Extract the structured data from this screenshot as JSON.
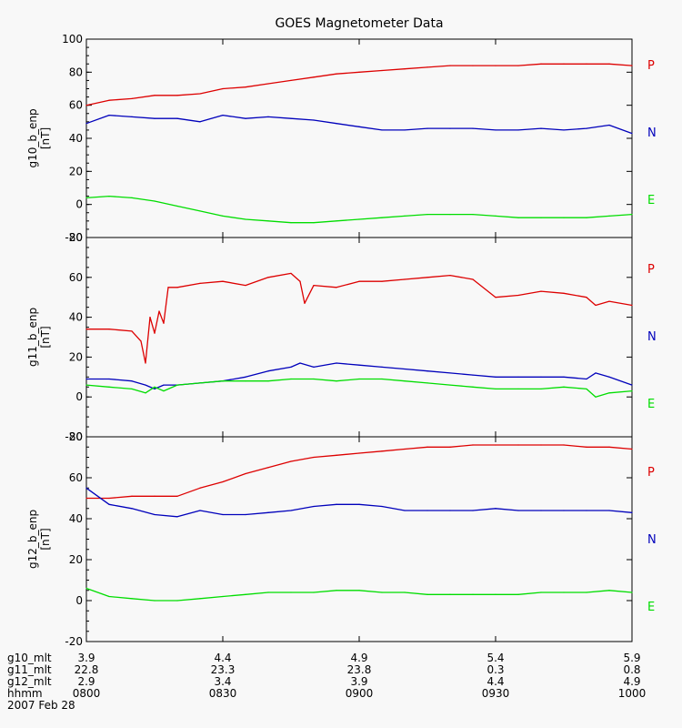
{
  "chart_data": {
    "type": "line",
    "title": "GOES Magnetometer Data",
    "colors": {
      "P": "#dd0000",
      "N": "#0000bb",
      "E": "#00dd00"
    },
    "x": {
      "xlim": [
        0,
        120
      ],
      "tick_positions": [
        0,
        30,
        60,
        90,
        120
      ],
      "rows": [
        {
          "name": "g10_mlt",
          "values": [
            "3.9",
            "4.4",
            "4.9",
            "5.4",
            "5.9"
          ]
        },
        {
          "name": "g11_mlt",
          "values": [
            "22.8",
            "23.3",
            "23.8",
            "0.3",
            "0.8"
          ]
        },
        {
          "name": "g12_mlt",
          "values": [
            "2.9",
            "3.4",
            "3.9",
            "4.4",
            "4.9"
          ]
        },
        {
          "name": "hhmm",
          "values": [
            "0800",
            "0830",
            "0900",
            "0930",
            "1000"
          ]
        }
      ],
      "date": "2007 Feb 28"
    },
    "panels": [
      {
        "ylabel": "g10_b_enp",
        "yunit": "[nT]",
        "ylim": [
          -20,
          100
        ],
        "yticks": [
          -20,
          0,
          20,
          40,
          60,
          80,
          100
        ],
        "legend": [
          "P",
          "N",
          "E"
        ],
        "series": [
          {
            "name": "P",
            "x": [
              0,
              5,
              10,
              15,
              20,
              25,
              30,
              35,
              40,
              45,
              50,
              55,
              60,
              65,
              70,
              75,
              80,
              85,
              90,
              95,
              100,
              105,
              110,
              115,
              120
            ],
            "y": [
              60,
              63,
              64,
              66,
              66,
              67,
              70,
              71,
              73,
              75,
              77,
              79,
              80,
              81,
              82,
              83,
              84,
              84,
              84,
              84,
              85,
              85,
              85,
              85,
              84
            ]
          },
          {
            "name": "N",
            "x": [
              0,
              5,
              10,
              15,
              20,
              25,
              30,
              35,
              40,
              45,
              50,
              55,
              60,
              65,
              70,
              75,
              80,
              85,
              90,
              95,
              100,
              105,
              110,
              115,
              120
            ],
            "y": [
              49,
              54,
              53,
              52,
              52,
              50,
              54,
              52,
              53,
              52,
              51,
              49,
              47,
              45,
              45,
              46,
              46,
              46,
              45,
              45,
              46,
              45,
              46,
              48,
              43
            ]
          },
          {
            "name": "E",
            "x": [
              0,
              5,
              10,
              15,
              20,
              25,
              30,
              35,
              40,
              45,
              50,
              55,
              60,
              65,
              70,
              75,
              80,
              85,
              90,
              95,
              100,
              105,
              110,
              115,
              120
            ],
            "y": [
              4,
              5,
              4,
              2,
              -1,
              -4,
              -7,
              -9,
              -10,
              -11,
              -11,
              -10,
              -9,
              -8,
              -7,
              -6,
              -6,
              -6,
              -7,
              -8,
              -8,
              -8,
              -8,
              -7,
              -6
            ]
          }
        ]
      },
      {
        "ylabel": "g11_b_enp",
        "yunit": "[nT]",
        "ylim": [
          -20,
          80
        ],
        "yticks": [
          -20,
          0,
          20,
          40,
          60,
          80
        ],
        "legend": [
          "P",
          "N",
          "E"
        ],
        "series": [
          {
            "name": "P",
            "x": [
              0,
              5,
              10,
              12,
              13,
              14,
              15,
              16,
              17,
              18,
              20,
              25,
              30,
              35,
              40,
              45,
              47,
              48,
              50,
              55,
              60,
              65,
              70,
              75,
              80,
              85,
              90,
              95,
              100,
              105,
              110,
              112,
              115,
              120
            ],
            "y": [
              34,
              34,
              33,
              28,
              17,
              40,
              32,
              43,
              37,
              55,
              55,
              57,
              58,
              56,
              60,
              62,
              58,
              47,
              56,
              55,
              58,
              58,
              59,
              60,
              61,
              59,
              50,
              51,
              53,
              52,
              50,
              46,
              48,
              46
            ]
          },
          {
            "name": "N",
            "x": [
              0,
              5,
              10,
              13,
              15,
              17,
              20,
              25,
              30,
              35,
              40,
              45,
              47,
              50,
              55,
              60,
              65,
              70,
              75,
              80,
              85,
              90,
              95,
              100,
              105,
              110,
              112,
              115,
              120
            ],
            "y": [
              9,
              9,
              8,
              6,
              4,
              6,
              6,
              7,
              8,
              10,
              13,
              15,
              17,
              15,
              17,
              16,
              15,
              14,
              13,
              12,
              11,
              10,
              10,
              10,
              10,
              9,
              12,
              10,
              6
            ]
          },
          {
            "name": "E",
            "x": [
              0,
              5,
              10,
              13,
              15,
              17,
              20,
              25,
              30,
              35,
              40,
              45,
              50,
              55,
              60,
              65,
              70,
              75,
              80,
              85,
              90,
              95,
              100,
              105,
              110,
              112,
              115,
              120
            ],
            "y": [
              6,
              5,
              4,
              2,
              5,
              3,
              6,
              7,
              8,
              8,
              8,
              9,
              9,
              8,
              9,
              9,
              8,
              7,
              6,
              5,
              4,
              4,
              4,
              5,
              4,
              0,
              2,
              3
            ]
          }
        ]
      },
      {
        "ylabel": "g12_b_enp",
        "yunit": "[nT]",
        "ylim": [
          -20,
          80
        ],
        "yticks": [
          -20,
          0,
          20,
          40,
          60,
          80
        ],
        "legend": [
          "P",
          "N",
          "E"
        ],
        "series": [
          {
            "name": "P",
            "x": [
              0,
              5,
              10,
              15,
              20,
              25,
              30,
              35,
              40,
              45,
              50,
              55,
              60,
              65,
              70,
              75,
              80,
              85,
              90,
              95,
              100,
              105,
              110,
              115,
              120
            ],
            "y": [
              50,
              50,
              51,
              51,
              51,
              55,
              58,
              62,
              65,
              68,
              70,
              71,
              72,
              73,
              74,
              75,
              75,
              76,
              76,
              76,
              76,
              76,
              75,
              75,
              74
            ]
          },
          {
            "name": "N",
            "x": [
              0,
              5,
              10,
              15,
              20,
              25,
              30,
              35,
              40,
              45,
              50,
              55,
              60,
              65,
              70,
              75,
              80,
              85,
              90,
              95,
              100,
              105,
              110,
              115,
              120
            ],
            "y": [
              55,
              47,
              45,
              42,
              41,
              44,
              42,
              42,
              43,
              44,
              46,
              47,
              47,
              46,
              44,
              44,
              44,
              44,
              45,
              44,
              44,
              44,
              44,
              44,
              43
            ]
          },
          {
            "name": "E",
            "x": [
              0,
              5,
              10,
              15,
              20,
              25,
              30,
              35,
              40,
              45,
              50,
              55,
              60,
              65,
              70,
              75,
              80,
              85,
              90,
              95,
              100,
              105,
              110,
              115,
              120
            ],
            "y": [
              6,
              2,
              1,
              0,
              0,
              1,
              2,
              3,
              4,
              4,
              4,
              5,
              5,
              4,
              4,
              3,
              3,
              3,
              3,
              3,
              4,
              4,
              4,
              5,
              4
            ]
          }
        ]
      }
    ]
  }
}
